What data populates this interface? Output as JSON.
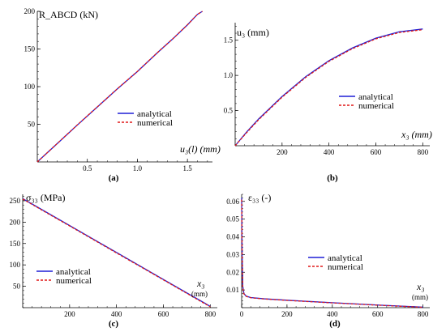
{
  "colors": {
    "analytical": "#1f1fd6",
    "numerical": "#e01818",
    "axis": "#000000"
  },
  "chart_data": [
    {
      "id": "a",
      "panel_label": "(a)",
      "type": "line",
      "xlim": [
        0,
        1.75
      ],
      "ylim": [
        0,
        200
      ],
      "x_ticks": [
        0.5,
        1.0,
        1.5
      ],
      "x_tick_labels": [
        "0.5",
        "1.0",
        "1.5"
      ],
      "y_ticks": [
        50,
        100,
        150,
        200
      ],
      "y_tick_labels": [
        "50",
        "100",
        "150",
        "200"
      ],
      "xlabel": "u₃(l) (mm)",
      "ylabel": "R_ABCD (kN)",
      "legend_position": "center-right",
      "series": [
        {
          "name": "analytical",
          "style": "solid",
          "x": [
            0,
            0.2,
            0.4,
            0.6,
            0.8,
            1.0,
            1.2,
            1.35,
            1.5,
            1.6,
            1.65
          ],
          "y": [
            0,
            24.5,
            49,
            73,
            97,
            120,
            145,
            163,
            182,
            196,
            200
          ]
        },
        {
          "name": "numerical",
          "style": "dashed",
          "x": [
            0,
            0.2,
            0.4,
            0.6,
            0.8,
            1.0,
            1.2,
            1.35,
            1.5,
            1.6,
            1.65
          ],
          "y": [
            0,
            24.6,
            49.2,
            73.2,
            97.2,
            120.2,
            145.2,
            163.1,
            182.1,
            196,
            200
          ]
        }
      ]
    },
    {
      "id": "b",
      "panel_label": "(b)",
      "type": "line",
      "xlim": [
        0,
        830
      ],
      "ylim": [
        0,
        1.75
      ],
      "x_ticks": [
        200,
        400,
        600,
        800
      ],
      "x_tick_labels": [
        "200",
        "400",
        "600",
        "800"
      ],
      "y_ticks": [
        0.5,
        1.0,
        1.5
      ],
      "y_tick_labels": [
        "0.5",
        "1.0",
        "1.5"
      ],
      "xlabel": "x₃ (mm)",
      "ylabel": "u₃ (mm)",
      "legend_position": "center-right",
      "series": [
        {
          "name": "analytical",
          "style": "solid",
          "x": [
            0,
            50,
            100,
            200,
            300,
            400,
            500,
            600,
            700,
            800
          ],
          "y": [
            0,
            0.2,
            0.38,
            0.7,
            0.98,
            1.21,
            1.39,
            1.53,
            1.62,
            1.66
          ]
        },
        {
          "name": "numerical",
          "style": "dashed",
          "x": [
            0,
            50,
            100,
            200,
            300,
            400,
            500,
            600,
            700,
            800
          ],
          "y": [
            0,
            0.19,
            0.37,
            0.69,
            0.97,
            1.2,
            1.38,
            1.52,
            1.61,
            1.65
          ]
        }
      ]
    },
    {
      "id": "c",
      "panel_label": "(c)",
      "type": "line",
      "xlim": [
        0,
        830
      ],
      "ylim": [
        0,
        265
      ],
      "x_ticks": [
        200,
        400,
        600,
        800
      ],
      "x_tick_labels": [
        "200",
        "400",
        "600",
        "800"
      ],
      "y_ticks": [
        50,
        100,
        150,
        200,
        250
      ],
      "y_tick_labels": [
        "50",
        "100",
        "150",
        "200",
        "250"
      ],
      "xlabel": "x₃",
      "xlabel_unit": "(mm)",
      "ylabel": "σ₃₃ (MPa)",
      "legend_position": "bottom-left",
      "series": [
        {
          "name": "analytical",
          "style": "solid",
          "x": [
            0,
            200,
            400,
            600,
            800
          ],
          "y": [
            255,
            192,
            129,
            66,
            3
          ]
        },
        {
          "name": "numerical",
          "style": "dashed",
          "x": [
            0,
            200,
            400,
            600,
            800
          ],
          "y": [
            254,
            191,
            128,
            65,
            2
          ]
        }
      ]
    },
    {
      "id": "d",
      "panel_label": "(d)",
      "type": "line",
      "xlim": [
        0,
        830
      ],
      "ylim": [
        0,
        0.064
      ],
      "x_ticks": [
        0,
        200,
        400,
        600,
        800
      ],
      "x_tick_labels": [
        "0",
        "200",
        "400",
        "600",
        "800"
      ],
      "y_ticks": [
        0.01,
        0.02,
        0.03,
        0.04,
        0.05,
        0.06
      ],
      "y_tick_labels": [
        "0.01",
        "0.02",
        "0.03",
        "0.04",
        "0.05",
        "0.06"
      ],
      "xlabel": "x₃",
      "xlabel_unit": "(mm)",
      "ylabel": "ε₃₃ (-)",
      "legend_position": "center-right",
      "series": [
        {
          "name": "analytical",
          "style": "solid",
          "x": [
            0,
            2,
            5,
            10,
            20,
            40,
            100,
            200,
            400,
            600,
            800
          ],
          "y": [
            0.062,
            0.03,
            0.012,
            0.008,
            0.0065,
            0.0057,
            0.005,
            0.0042,
            0.0028,
            0.0015,
            0.0003
          ]
        },
        {
          "name": "numerical",
          "style": "dashed",
          "x": [
            0,
            2,
            5,
            10,
            20,
            40,
            100,
            200,
            400,
            600,
            800
          ],
          "y": [
            0.061,
            0.029,
            0.0115,
            0.0078,
            0.0064,
            0.0056,
            0.0049,
            0.0041,
            0.0027,
            0.0014,
            0.0002
          ]
        }
      ]
    }
  ]
}
